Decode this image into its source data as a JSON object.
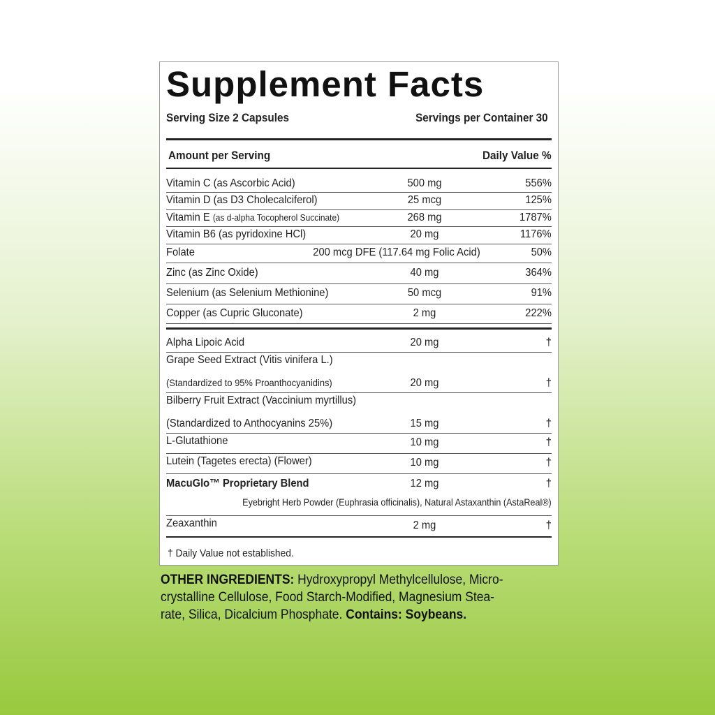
{
  "header": {
    "title": "Supplement Facts",
    "serving_size": "Serving Size 2 Capsules",
    "servings_per_container": "Servings per Container 30"
  },
  "columns": {
    "amount": "Amount per Serving",
    "daily_value": "Daily Value %"
  },
  "vitamins": [
    {
      "name": "Vitamin C (as Ascorbic Acid)",
      "amount": "500 mg",
      "dv": "556%"
    },
    {
      "name": "Vitamin D (as D3 Cholecalciferol)",
      "amount": "25 mcg",
      "dv": "125%"
    },
    {
      "name": "Vitamin E",
      "note": "(as d-alpha Tocopherol Succinate)",
      "amount": "268 mg",
      "dv": "1787%"
    },
    {
      "name": "Vitamin B6 (as pyridoxine HCl)",
      "amount": "20 mg",
      "dv": "1176%"
    },
    {
      "name": "Folate",
      "amount": "200 mcg DFE (117.64 mg Folic Acid)",
      "dv": "50%"
    },
    {
      "name": "Zinc (as Zinc Oxide)",
      "amount": "40 mg",
      "dv": "364%"
    },
    {
      "name": "Selenium (as Selenium Methionine)",
      "amount": "50 mcg",
      "dv": "91%"
    },
    {
      "name": "Copper (as Cupric Gluconate)",
      "amount": "2 mg",
      "dv": "222%"
    }
  ],
  "others": [
    {
      "name": "Alpha Lipoic Acid",
      "amount": "20 mg",
      "dv": "†"
    },
    {
      "name": "Grape Seed Extract (Vitis vinifera L.)",
      "detail": "(Standardized to 95% Proanthocyanidins)",
      "amount": "20 mg",
      "dv": "†"
    },
    {
      "name": "Bilberry Fruit Extract (Vaccinium myrtillus)",
      "detail": "(Standardized to Anthocyanins 25%)",
      "amount": "15 mg",
      "dv": "†"
    },
    {
      "name": "L-Glutathione",
      "amount": "10 mg",
      "dv": "†"
    },
    {
      "name": "Lutein (Tagetes erecta) (Flower)",
      "amount": "10 mg",
      "dv": "†"
    },
    {
      "name": "MacuGlo™ Proprietary Blend",
      "amount": "12 mg",
      "dv": "†",
      "ingredients": "Eyebright Herb Powder (Euphrasia officinalis), Natural Astaxanthin (AstaReal®)"
    },
    {
      "name": "Zeaxanthin",
      "amount": "2 mg",
      "dv": "†"
    }
  ],
  "footnote": "† Daily Value not established.",
  "other_ingredients": {
    "label": "OTHER INGREDIENTS:",
    "lines": [
      "Hydroxypropyl Methylcellulose, Micro-",
      "crystalline Cellulose, Food Starch-Modified, Magnesium Stea-",
      "rate, Silica, Dicalcium Phosphate."
    ],
    "contains": "Contains: Soybeans."
  }
}
